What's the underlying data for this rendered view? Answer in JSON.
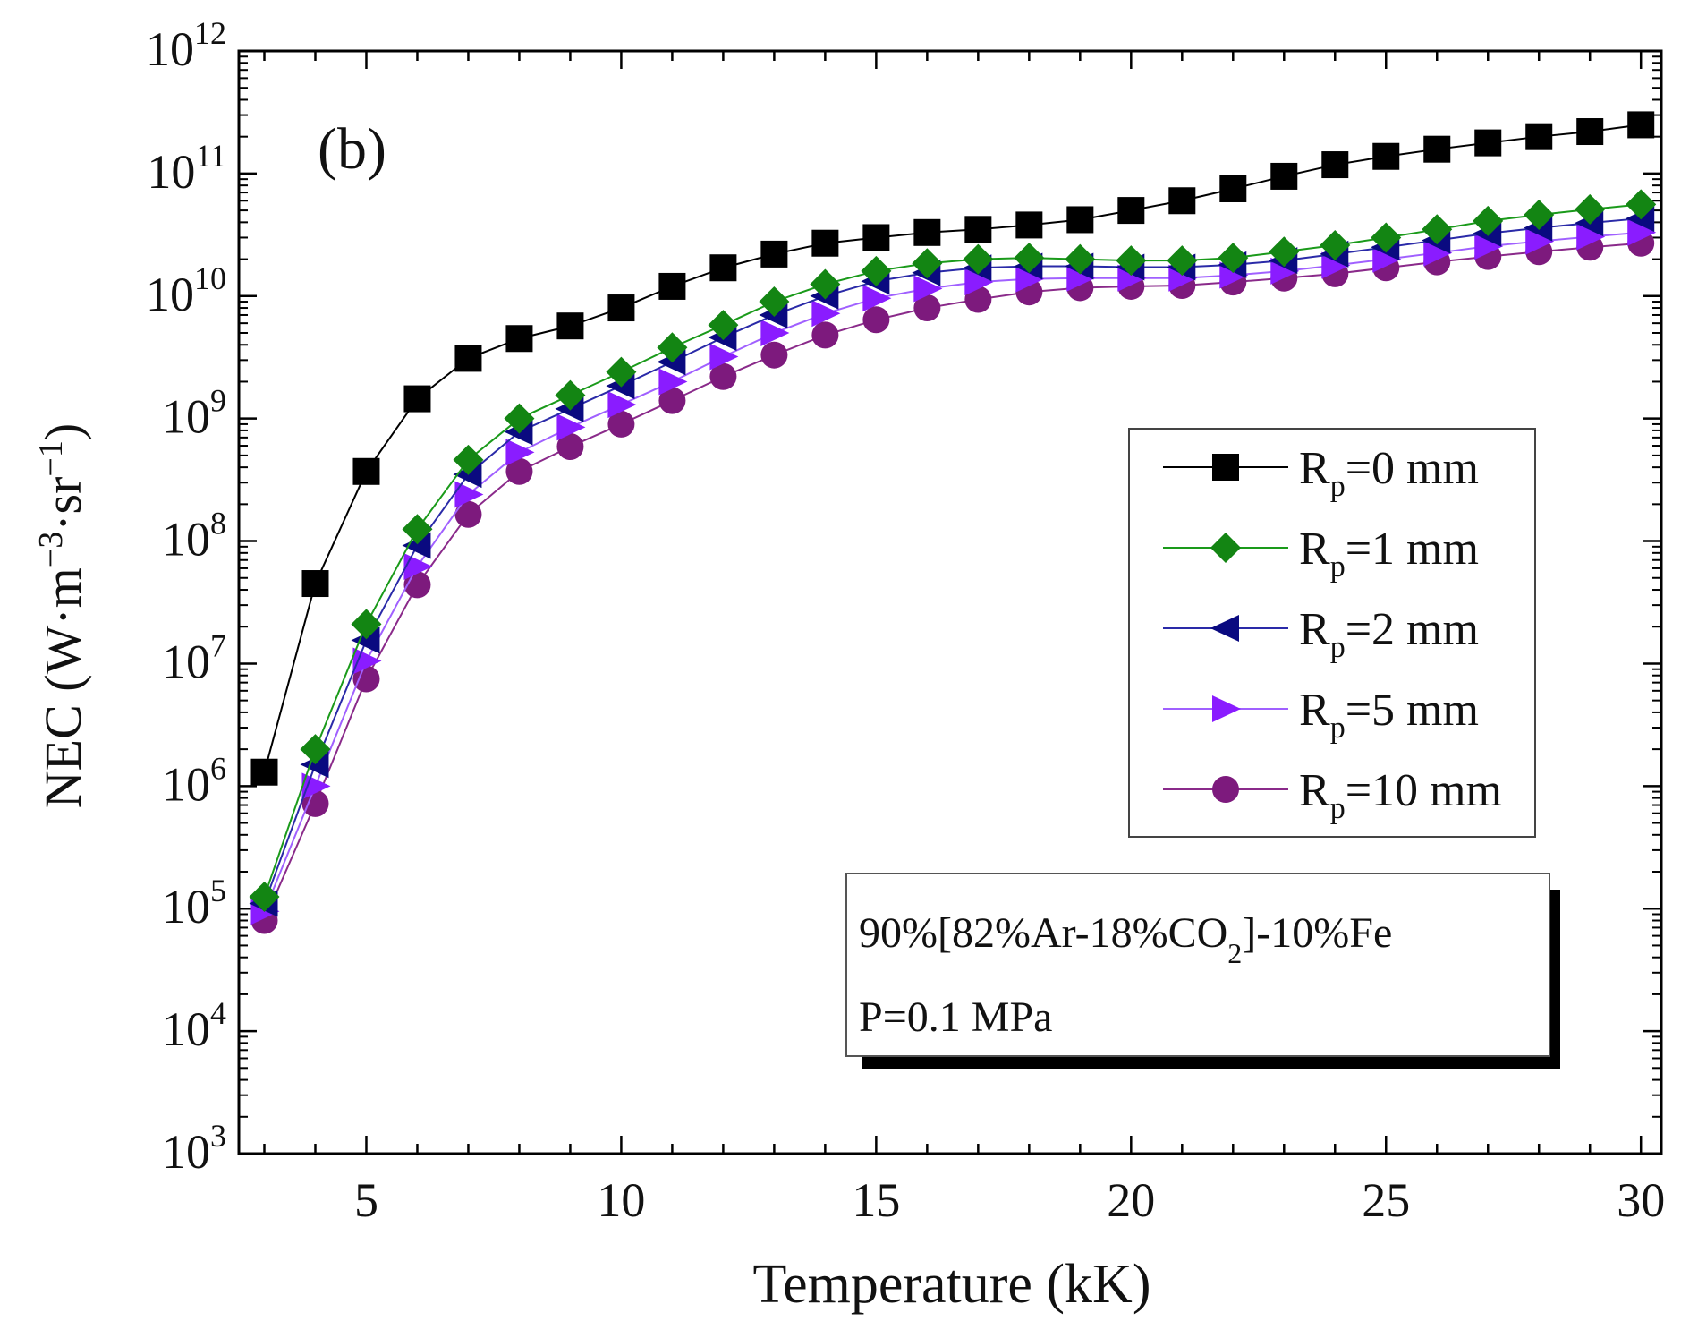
{
  "chart_data": {
    "type": "line",
    "panel_label": "(b)",
    "title": "",
    "xlabel": "Temperature (kK)",
    "ylabel": "NEC (W·m⁻³·sr⁻¹)",
    "ylabel_parts": {
      "main": "NEC (W·m",
      "sup1": "−3",
      "mid": "·sr",
      "sup2": "−1",
      "end": ")"
    },
    "xlim": [
      2.5,
      30.4
    ],
    "ylim_log10": [
      3,
      12
    ],
    "y_scale": "log",
    "xticks": [
      5,
      10,
      15,
      20,
      25,
      30
    ],
    "xtick_labels": [
      "5",
      "10",
      "15",
      "20",
      "25",
      "30"
    ],
    "ytick_exponents": [
      3,
      4,
      5,
      6,
      7,
      8,
      9,
      10,
      11,
      12
    ],
    "ytick_base": "10",
    "legend_position": "right-middle",
    "x": [
      3,
      4,
      5,
      6,
      7,
      8,
      9,
      10,
      11,
      12,
      13,
      14,
      15,
      16,
      17,
      18,
      19,
      20,
      21,
      22,
      23,
      24,
      25,
      26,
      27,
      28,
      29,
      30
    ],
    "series": [
      {
        "name": "Rp=0 mm",
        "label_main": "R",
        "label_sub": "p",
        "label_rest": "=0 mm",
        "marker": "square",
        "line_color": "#000000",
        "marker_color": "#000000",
        "values": [
          1300000.0,
          45000000.0,
          370000000.0,
          1450000000.0,
          3100000000.0,
          4500000000.0,
          5700000000.0,
          8000000000.0,
          12000000000.0,
          17000000000.0,
          22000000000.0,
          27000000000.0,
          30000000000.0,
          33000000000.0,
          35000000000.0,
          38000000000.0,
          42000000000.0,
          50000000000.0,
          60000000000.0,
          75000000000.0,
          95000000000.0,
          118000000000.0,
          138000000000.0,
          158000000000.0,
          178000000000.0,
          200000000000.0,
          220000000000.0,
          250000000000.0
        ]
      },
      {
        "name": "Rp=1 mm",
        "label_main": "R",
        "label_sub": "p",
        "label_rest": "=1 mm",
        "marker": "diamond",
        "line_color": "#1a9a1a",
        "marker_color": "#138513",
        "values": [
          125000.0,
          2000000.0,
          21000000.0,
          125000000.0,
          460000000.0,
          1000000000.0,
          1550000000.0,
          2400000000.0,
          3800000000.0,
          5800000000.0,
          9000000000.0,
          12500000000.0,
          16000000000.0,
          18500000000.0,
          20000000000.0,
          20500000000.0,
          20000000000.0,
          19500000000.0,
          19500000000.0,
          20500000000.0,
          23000000000.0,
          26000000000.0,
          30000000000.0,
          35000000000.0,
          41000000000.0,
          46000000000.0,
          51000000000.0,
          56000000000.0
        ]
      },
      {
        "name": "Rp=2 mm",
        "label_main": "R",
        "label_sub": "p",
        "label_rest": "=2 mm",
        "marker": "triangle-left",
        "line_color": "#2a2aa8",
        "marker_color": "#0a0a80",
        "values": [
          110000.0,
          1500000.0,
          15500000.0,
          92000000.0,
          350000000.0,
          780000000.0,
          1200000000.0,
          1850000000.0,
          2900000000.0,
          4600000000.0,
          7000000000.0,
          10000000000.0,
          13200000000.0,
          15500000000.0,
          17000000000.0,
          17500000000.0,
          17500000000.0,
          17200000000.0,
          17200000000.0,
          18000000000.0,
          19500000000.0,
          22000000000.0,
          25000000000.0,
          28500000000.0,
          32500000000.0,
          36000000000.0,
          39500000000.0,
          43000000000.0
        ]
      },
      {
        "name": "Rp=5 mm",
        "label_main": "R",
        "label_sub": "p",
        "label_rest": "=5 mm",
        "marker": "triangle-right",
        "line_color": "#a060ff",
        "marker_color": "#8a1cff",
        "values": [
          95000.0,
          1000000.0,
          10500000.0,
          62000000.0,
          240000000.0,
          530000000.0,
          850000000.0,
          1300000000.0,
          2000000000.0,
          3200000000.0,
          5000000000.0,
          7200000000.0,
          9600000000.0,
          11500000000.0,
          13000000000.0,
          13800000000.0,
          14000000000.0,
          14000000000.0,
          14000000000.0,
          14800000000.0,
          16000000000.0,
          17800000000.0,
          20000000000.0,
          22500000000.0,
          25500000000.0,
          28000000000.0,
          30500000000.0,
          33000000000.0
        ]
      },
      {
        "name": "Rp=10 mm",
        "label_main": "R",
        "label_sub": "p",
        "label_rest": "=10 mm",
        "marker": "circle",
        "line_color": "#8a2a8a",
        "marker_color": "#7d1a7d",
        "values": [
          80000.0,
          720000.0,
          7500000.0,
          44000000.0,
          165000000.0,
          370000000.0,
          590000000.0,
          900000000.0,
          1400000000.0,
          2200000000.0,
          3300000000.0,
          4800000000.0,
          6400000000.0,
          8000000000.0,
          9400000000.0,
          10800000000.0,
          11700000000.0,
          12000000000.0,
          12200000000.0,
          13000000000.0,
          14000000000.0,
          15200000000.0,
          17000000000.0,
          19000000000.0,
          21000000000.0,
          23000000000.0,
          25000000000.0,
          27000000000.0
        ]
      }
    ],
    "annotation": {
      "line1_pre": "90%[82%Ar-18%CO",
      "line1_sub": "2",
      "line1_post": "]-10%Fe",
      "line2": "P=0.1 MPa"
    }
  }
}
